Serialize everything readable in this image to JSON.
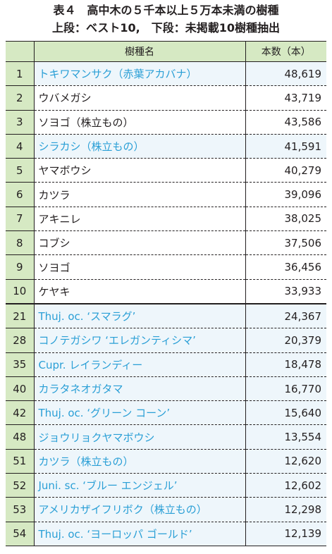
{
  "caption": {
    "line1": "表４　高中木の５千本以上５万本未満の樹種",
    "line2": "上段：ベスト10,　下段：未掲載10樹種抽出"
  },
  "table": {
    "headers": {
      "rank": "",
      "name": "樹種名",
      "count": "本数（本）"
    },
    "highlight_color": "#2a9fd6",
    "header_color": "#d6e9c3",
    "rows": [
      {
        "rank": "1",
        "name": "トキワマンサク（赤葉アカバナ）",
        "count": "48,619",
        "highlight": true
      },
      {
        "rank": "2",
        "name": "ウバメガシ",
        "count": "43,719",
        "highlight": false
      },
      {
        "rank": "3",
        "name": "ソヨゴ（株立もの）",
        "count": "43,586",
        "highlight": false
      },
      {
        "rank": "4",
        "name": "シラカシ（株立もの）",
        "count": "41,591",
        "highlight": true
      },
      {
        "rank": "5",
        "name": "ヤマボウシ",
        "count": "40,279",
        "highlight": false
      },
      {
        "rank": "6",
        "name": "カツラ",
        "count": "39,096",
        "highlight": false
      },
      {
        "rank": "7",
        "name": "アキニレ",
        "count": "38,025",
        "highlight": false
      },
      {
        "rank": "8",
        "name": "コブシ",
        "count": "37,506",
        "highlight": false
      },
      {
        "rank": "9",
        "name": "ソヨゴ",
        "count": "36,456",
        "highlight": false
      },
      {
        "rank": "10",
        "name": "ケヤキ",
        "count": "33,933",
        "highlight": false
      },
      {
        "rank": "21",
        "name": "Thuj. oc. ‘スマラグ’",
        "count": "24,367",
        "highlight": true
      },
      {
        "rank": "28",
        "name": "コノテガシワ ‘エレガンティシマ’",
        "count": "20,379",
        "highlight": true
      },
      {
        "rank": "35",
        "name": "Cupr. レイランディー",
        "count": "18,478",
        "highlight": true
      },
      {
        "rank": "40",
        "name": "カラタネオガタマ",
        "count": "16,770",
        "highlight": true
      },
      {
        "rank": "42",
        "name": "Thuj. oc. ‘グリーン コーン’",
        "count": "15,640",
        "highlight": true
      },
      {
        "rank": "48",
        "name": "ジョウリョクヤマボウシ",
        "count": "13,554",
        "highlight": true
      },
      {
        "rank": "51",
        "name": "カツラ（株立もの）",
        "count": "12,620",
        "highlight": true
      },
      {
        "rank": "52",
        "name": "Juni. sc. ‘ブルー エンジェル’",
        "count": "12,602",
        "highlight": true
      },
      {
        "rank": "53",
        "name": "アメリカザイフリボク（株立もの）",
        "count": "12,298",
        "highlight": true
      },
      {
        "rank": "54",
        "name": "Thuj. oc. ‘ヨーロッパ ゴールド’",
        "count": "12,139",
        "highlight": true
      }
    ]
  }
}
